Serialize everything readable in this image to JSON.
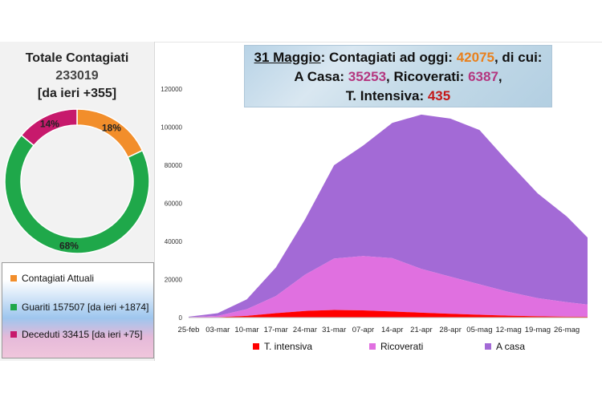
{
  "summary": {
    "title": "Totale Contagiati",
    "total": "233019",
    "delta": "[da ieri +355]"
  },
  "donut": {
    "slices": [
      {
        "key": "attuali",
        "percent": 18,
        "label": "18%",
        "color": "#f28e2b"
      },
      {
        "key": "guariti",
        "percent": 68,
        "label": "68%",
        "color": "#1fa84a"
      },
      {
        "key": "deceduti",
        "percent": 14,
        "label": "14%",
        "color": "#c7196c"
      }
    ]
  },
  "legend_box": {
    "items": [
      {
        "label": "Contagiati Attuali",
        "color": "#f28e2b"
      },
      {
        "label": "Guariti 157507 [da ieri +1874]",
        "color": "#1fa84a"
      },
      {
        "label": "Deceduti 33415 [da ieri +75]",
        "color": "#c7196c"
      }
    ]
  },
  "banner": {
    "date": "31 Maggio",
    "sep1": ": Contagiati ad oggi: ",
    "total_current": "42075",
    "sep2": ", di cui:",
    "home_label": "A Casa: ",
    "home_value": "35253",
    "hosp_label": ", Ricoverati: ",
    "hosp_value": "6387",
    "hosp_end": ",",
    "icu_label": "T. Intensiva: ",
    "icu_value": "435"
  },
  "chart_data": {
    "type": "area",
    "stacked": true,
    "xlabels": [
      "25-feb",
      "03-mar",
      "10-mar",
      "17-mar",
      "24-mar",
      "31-mar",
      "07-apr",
      "14-apr",
      "21-apr",
      "28-apr",
      "05-mag",
      "12-mag",
      "19-mag",
      "26-mag"
    ],
    "ylim": [
      0,
      120000
    ],
    "yticks": [
      "0",
      "20000",
      "40000",
      "60000",
      "80000",
      "100000",
      "120000"
    ],
    "grid": false,
    "legend_position": "bottom",
    "x": [
      0,
      7,
      14,
      21,
      28,
      35,
      42,
      49,
      56,
      63,
      70,
      77,
      84,
      91,
      96
    ],
    "series": [
      {
        "name": "T. intensiva",
        "color": "#ff0000",
        "values": [
          50,
          200,
          900,
          2300,
          3500,
          4000,
          3800,
          3200,
          2600,
          2000,
          1500,
          1000,
          700,
          500,
          435
        ]
      },
      {
        "name": "Ricoverati",
        "color": "#e070e0",
        "values": [
          150,
          700,
          3500,
          9000,
          19000,
          27000,
          28500,
          28000,
          23000,
          19500,
          16000,
          12500,
          9500,
          7600,
          6387
        ]
      },
      {
        "name": "A casa",
        "color": "#a36ad6",
        "values": [
          300,
          1400,
          5200,
          15000,
          29000,
          49000,
          58000,
          71000,
          81000,
          83000,
          81000,
          68000,
          55000,
          45000,
          35253
        ]
      }
    ]
  }
}
